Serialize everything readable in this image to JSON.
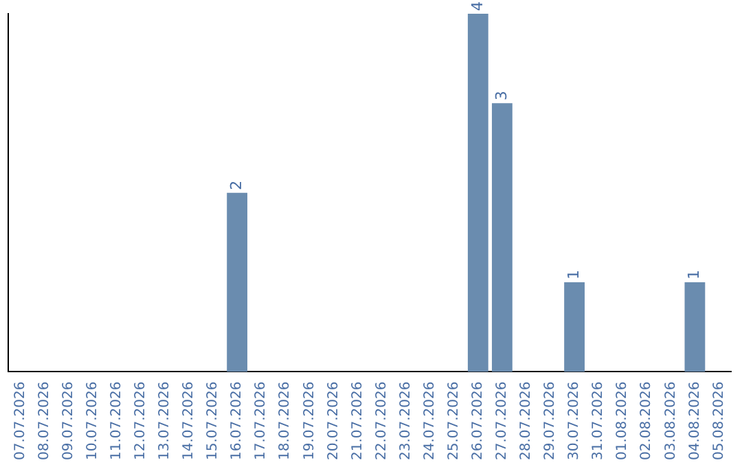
{
  "chart_data": {
    "type": "bar",
    "categories": [
      "07.07.2026",
      "08.07.2026",
      "09.07.2026",
      "10.07.2026",
      "11.07.2026",
      "12.07.2026",
      "13.07.2026",
      "14.07.2026",
      "15.07.2026",
      "16.07.2026",
      "17.07.2026",
      "18.07.2026",
      "19.07.2026",
      "20.07.2026",
      "21.07.2026",
      "22.07.2026",
      "23.07.2026",
      "24.07.2026",
      "25.07.2026",
      "26.07.2026",
      "27.07.2026",
      "28.07.2026",
      "29.07.2026",
      "30.07.2026",
      "31.07.2026",
      "01.08.2026",
      "02.08.2026",
      "03.08.2026",
      "04.08.2026",
      "05.08.2026"
    ],
    "values": [
      null,
      null,
      null,
      null,
      null,
      null,
      null,
      null,
      null,
      2,
      null,
      null,
      null,
      null,
      null,
      null,
      null,
      null,
      null,
      4,
      3,
      null,
      null,
      1,
      null,
      null,
      null,
      null,
      1,
      null
    ],
    "color": "#6a8caf",
    "ylim": [
      0,
      4
    ],
    "data_labels": true,
    "tick_labels": "x",
    "grid": false,
    "legend": false
  }
}
